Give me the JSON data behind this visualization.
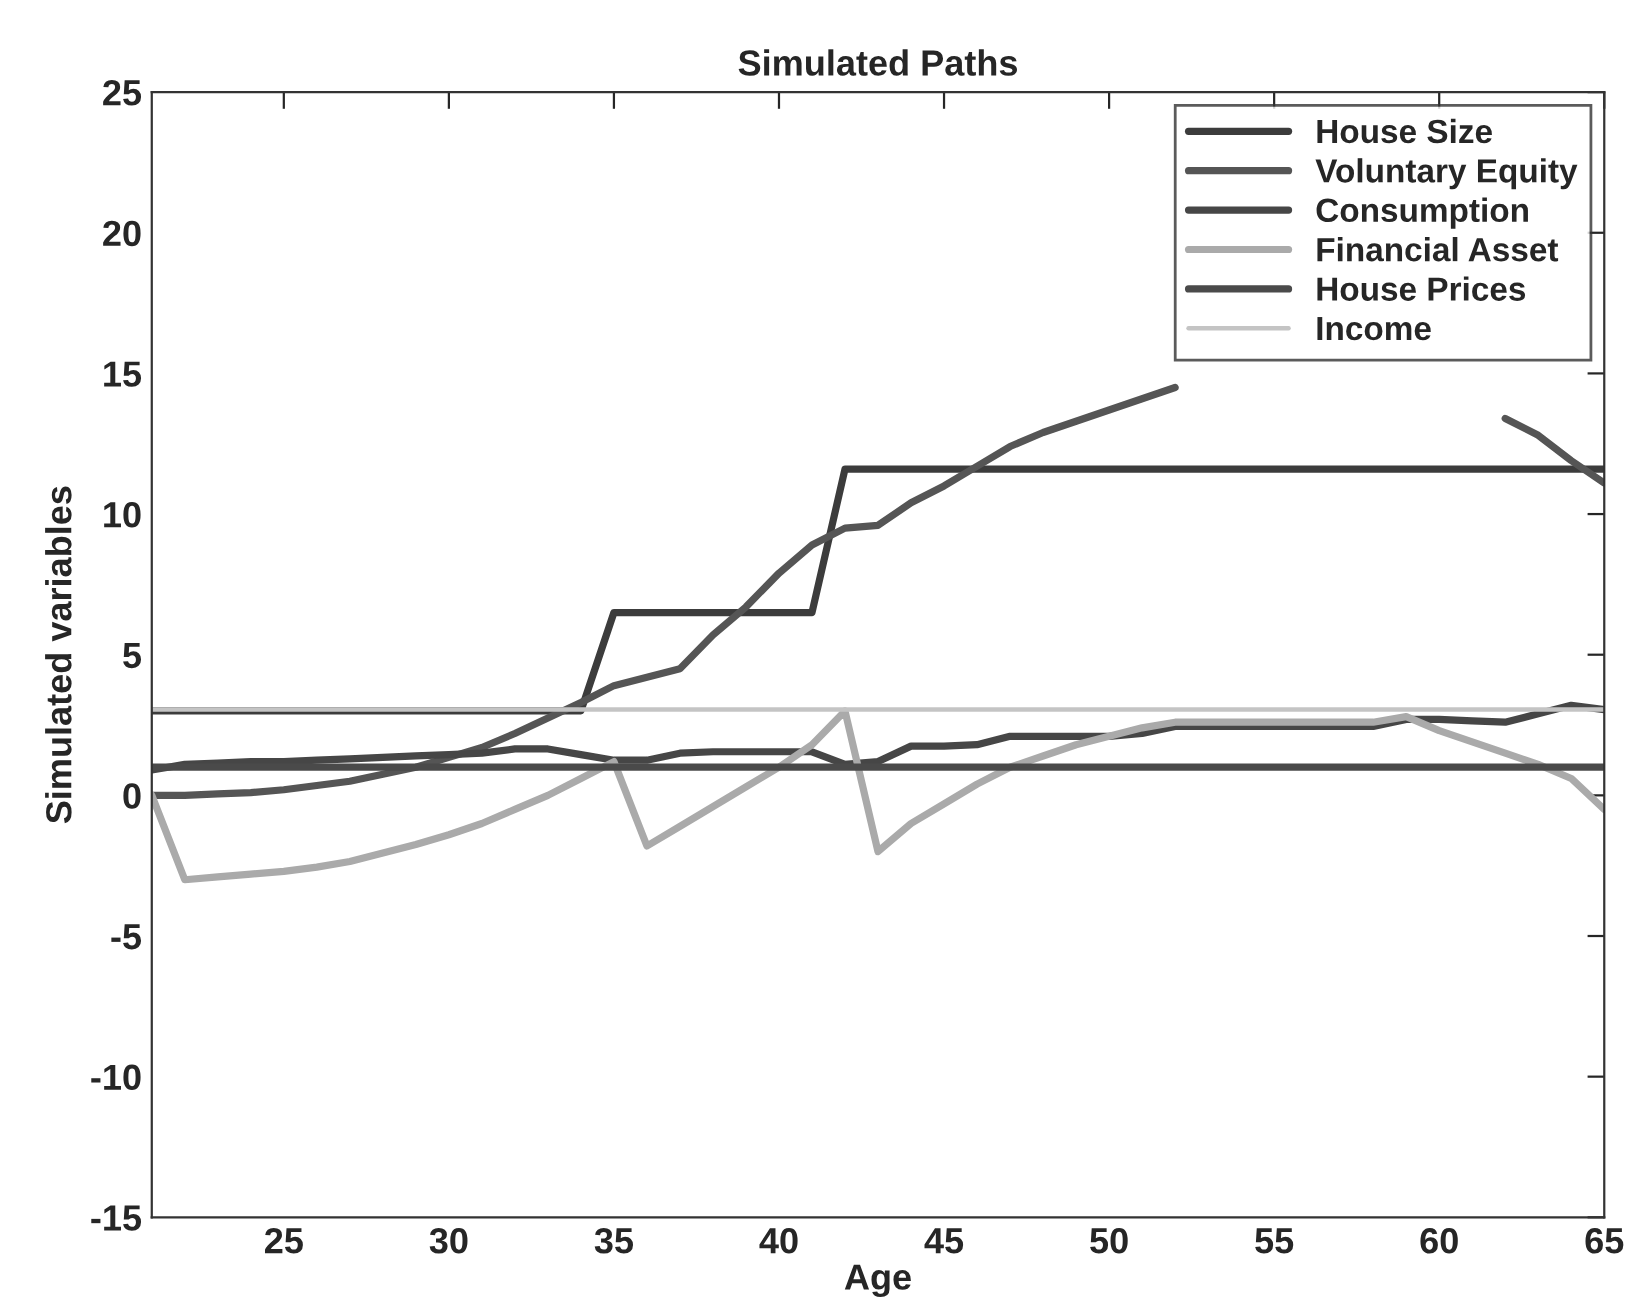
{
  "chart_data": {
    "type": "line",
    "title": "Simulated Paths",
    "xlabel": "Age",
    "ylabel": "Simulated variables",
    "x": [
      21,
      22,
      23,
      24,
      25,
      26,
      27,
      28,
      29,
      30,
      31,
      32,
      33,
      34,
      35,
      36,
      37,
      38,
      39,
      40,
      41,
      42,
      43,
      44,
      45,
      46,
      47,
      48,
      49,
      50,
      51,
      52,
      53,
      54,
      55,
      56,
      57,
      58,
      59,
      60,
      61,
      62,
      63,
      64,
      65
    ],
    "series": [
      {
        "name": "House Size",
        "color": "#3c3c3c",
        "values": [
          3,
          3,
          3,
          3,
          3,
          3,
          3,
          3,
          3,
          3,
          3,
          3,
          3,
          3,
          6.5,
          6.5,
          6.5,
          6.5,
          6.5,
          6.5,
          6.5,
          11.6,
          11.6,
          11.6,
          11.6,
          11.6,
          11.6,
          11.6,
          11.6,
          11.6,
          11.6,
          11.6,
          11.6,
          11.6,
          11.6,
          11.6,
          11.6,
          11.6,
          11.6,
          11.6,
          11.6,
          11.6,
          11.6,
          11.6,
          11.6
        ]
      },
      {
        "name": "Voluntary Equity",
        "color": "#555555",
        "values": [
          0,
          0,
          0.05,
          0.1,
          0.2,
          0.35,
          0.5,
          0.75,
          1.0,
          1.35,
          1.7,
          2.2,
          2.75,
          3.3,
          3.9,
          4.2,
          4.5,
          5.7,
          6.7,
          7.9,
          8.9,
          9.5,
          9.6,
          10.4,
          11.0,
          11.7,
          12.4,
          12.9,
          13.3,
          13.7,
          14.1,
          14.5,
          null,
          null,
          null,
          null,
          null,
          null,
          null,
          null,
          null,
          13.4,
          12.8,
          11.9,
          11.1
        ]
      },
      {
        "name": "Consumption",
        "color": "#464646",
        "values": [
          0.9,
          1.1,
          1.15,
          1.2,
          1.2,
          1.25,
          1.3,
          1.35,
          1.4,
          1.45,
          1.5,
          1.65,
          1.65,
          1.45,
          1.25,
          1.25,
          1.5,
          1.55,
          1.55,
          1.55,
          1.55,
          1.1,
          1.2,
          1.75,
          1.75,
          1.8,
          2.1,
          2.1,
          2.1,
          2.1,
          2.2,
          2.45,
          2.45,
          2.45,
          2.45,
          2.45,
          2.45,
          2.45,
          2.7,
          2.7,
          2.65,
          2.6,
          2.9,
          3.2,
          3.05
        ]
      },
      {
        "name": "Financial Asset",
        "color": "#aaaaaa",
        "values": [
          0,
          -3.0,
          -2.9,
          -2.8,
          -2.7,
          -2.55,
          -2.35,
          -2.05,
          -1.75,
          -1.4,
          -1.0,
          -0.5,
          0,
          0.6,
          1.2,
          -1.8,
          -1.1,
          -0.4,
          0.3,
          1.0,
          1.8,
          3.0,
          -2.0,
          -1.0,
          -0.3,
          0.4,
          1.0,
          1.4,
          1.8,
          2.1,
          2.4,
          2.6,
          2.6,
          2.6,
          2.6,
          2.6,
          2.6,
          2.6,
          2.8,
          2.3,
          1.9,
          1.5,
          1.1,
          0.6,
          -0.5
        ]
      },
      {
        "name": "House Prices",
        "color": "#4a4a4a",
        "values": [
          1,
          1,
          1,
          1,
          1,
          1,
          1,
          1,
          1,
          1,
          1,
          1,
          1,
          1,
          1,
          1,
          1,
          1,
          1,
          1,
          1,
          1,
          1,
          1,
          1,
          1,
          1,
          1,
          1,
          1,
          1,
          1,
          1,
          1,
          1,
          1,
          1,
          1,
          1,
          1,
          1,
          1,
          1,
          1,
          1
        ]
      },
      {
        "name": "Income",
        "color": "#c4c4c4",
        "values": [
          3.05,
          3.05,
          3.05,
          3.05,
          3.05,
          3.05,
          3.05,
          3.05,
          3.05,
          3.05,
          3.05,
          3.05,
          3.05,
          3.05,
          3.05,
          3.05,
          3.05,
          3.05,
          3.05,
          3.05,
          3.05,
          3.05,
          3.05,
          3.05,
          3.05,
          3.05,
          3.05,
          3.05,
          3.05,
          3.05,
          3.05,
          3.05,
          3.05,
          3.05,
          3.05,
          3.05,
          3.05,
          3.05,
          3.05,
          3.05,
          3.05,
          3.05,
          3.05,
          3.05,
          3.05
        ]
      }
    ],
    "xlim": [
      21,
      65
    ],
    "xticks": [
      25,
      30,
      35,
      40,
      45,
      50,
      55,
      60,
      65
    ],
    "ylim": [
      -15,
      25
    ],
    "yticks": [
      -15,
      -10,
      -5,
      0,
      5,
      10,
      15,
      20,
      25
    ],
    "legend": "top right",
    "grid": false
  }
}
